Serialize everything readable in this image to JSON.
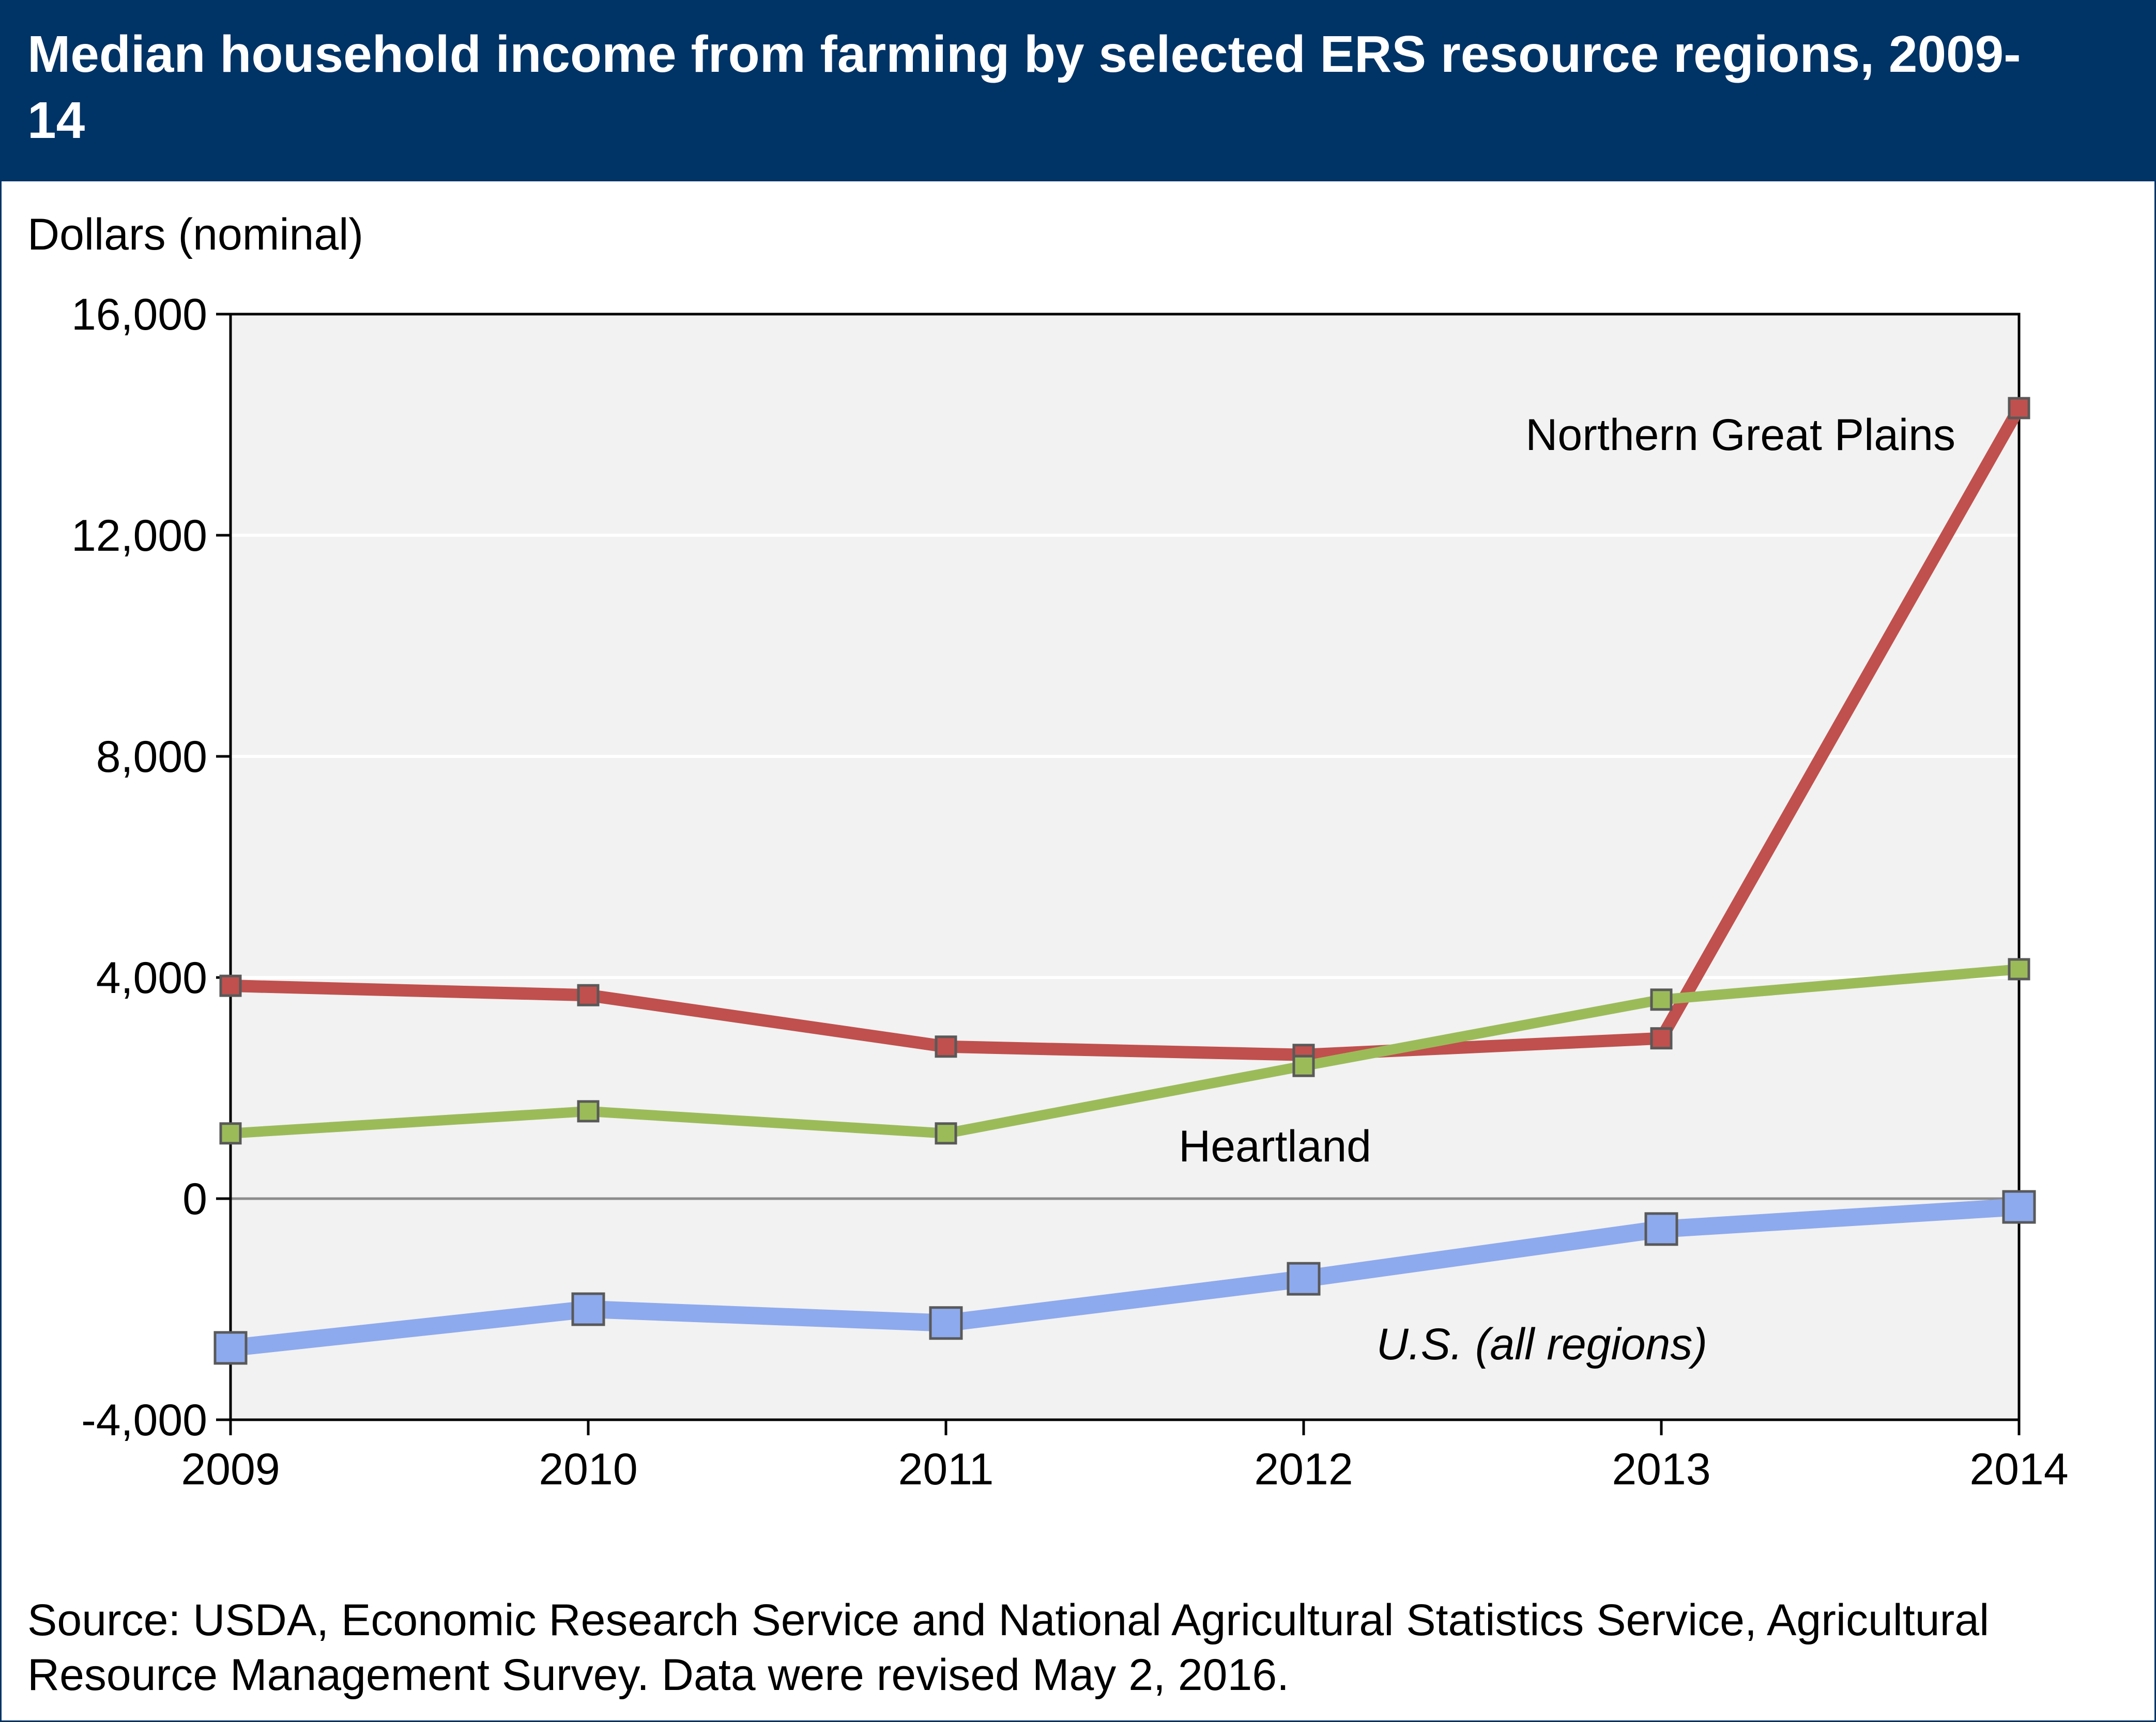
{
  "chart_data": {
    "type": "line",
    "title": "Median household income from farming by selected ERS resource regions, 2009-14",
    "ylabel": "Dollars (nominal)",
    "xlabel": "",
    "x": [
      2009,
      2010,
      2011,
      2012,
      2013,
      2014
    ],
    "x_tick_labels": [
      "2009",
      "2010",
      "2011",
      "2012",
      "2013",
      "2014"
    ],
    "ylim": [
      -4000,
      16000
    ],
    "y_ticks": [
      -4000,
      0,
      4000,
      8000,
      12000,
      16000
    ],
    "y_tick_labels": [
      "-4,000",
      "0",
      "4,000",
      "8,000",
      "12,000",
      "16,000"
    ],
    "grid": "horizontal",
    "series": [
      {
        "name": "Northern Great Plains",
        "color": "#c0504d",
        "italic": false,
        "values": [
          3850,
          3680,
          2750,
          2600,
          2900,
          14300
        ]
      },
      {
        "name": "Heartland",
        "color": "#9bbb59",
        "italic": false,
        "values": [
          1180,
          1580,
          1180,
          2400,
          3600,
          4150
        ]
      },
      {
        "name": "U.S. (all regions)",
        "color": "#8eaaee",
        "italic": true,
        "values": [
          -2700,
          -2000,
          -2250,
          -1450,
          -550,
          -150
        ]
      }
    ],
    "source": "Source: USDA, Economic Research Service and National Agricultural Statistics Service, Agricultural Resource Management Survey. Data were revised May 2, 2016."
  }
}
